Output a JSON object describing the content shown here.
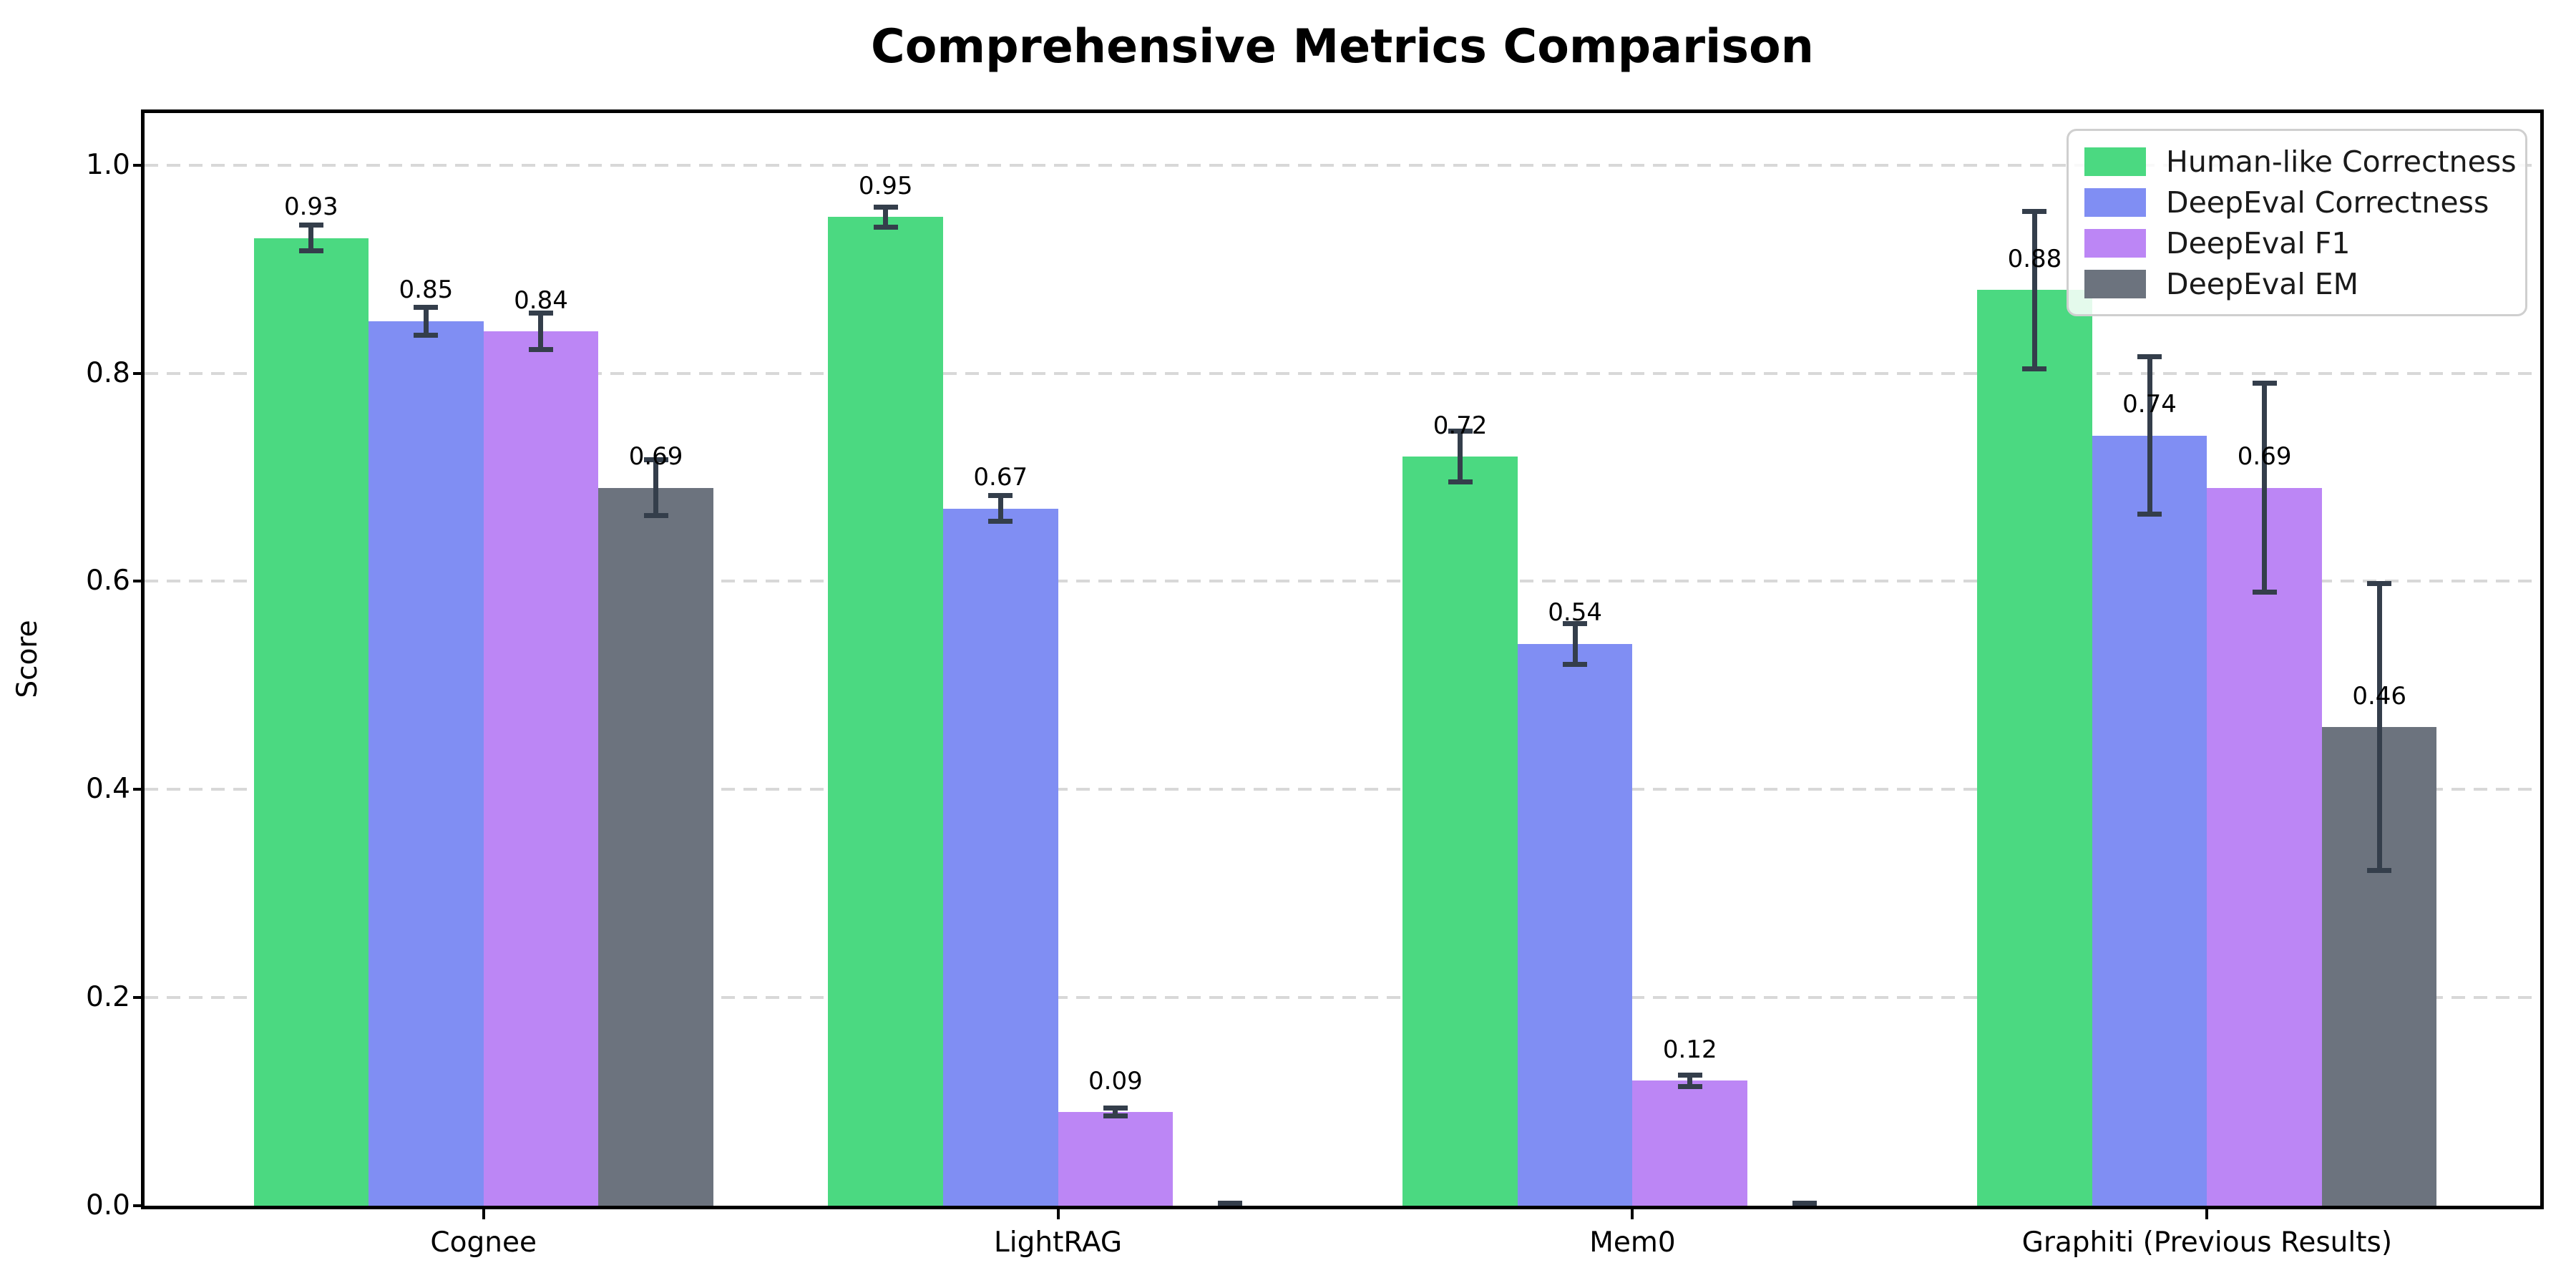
{
  "chart_data": {
    "type": "bar",
    "title": "Comprehensive Metrics Comparison",
    "ylabel": "Score",
    "xlabel": "",
    "categories": [
      "Cognee",
      "LightRAG",
      "Mem0",
      "Graphiti (Previous Results)"
    ],
    "ytick_labels": [
      "0.0",
      "0.2",
      "0.4",
      "0.6",
      "0.8",
      "1.0"
    ],
    "yticks": [
      0.0,
      0.2,
      0.4,
      0.6,
      0.8,
      1.0
    ],
    "ylim": [
      0,
      1.05
    ],
    "bar_width": 0.2,
    "grid": {
      "axis": "y",
      "style": "dashed",
      "color": "#d8d8d8"
    },
    "error_bar_color": "#343e4b",
    "legend": {
      "position": "upper right",
      "entries": [
        "Human-like Correctness",
        "DeepEval Correctness",
        "DeepEval F1",
        "DeepEval EM"
      ]
    },
    "series": [
      {
        "name": "Human-like Correctness",
        "color": "#4bd981",
        "values": [
          0.93,
          0.95,
          0.72,
          0.88
        ],
        "errors": [
          0.015,
          0.012,
          0.027,
          0.078
        ],
        "labels": [
          "0.93",
          "0.95",
          "0.72",
          "0.88"
        ]
      },
      {
        "name": "DeepEval Correctness",
        "color": "#808ef3",
        "values": [
          0.85,
          0.67,
          0.54,
          0.74
        ],
        "errors": [
          0.016,
          0.015,
          0.022,
          0.078
        ],
        "labels": [
          "0.85",
          "0.67",
          "0.54",
          "0.74"
        ]
      },
      {
        "name": "DeepEval F1",
        "color": "#bc86f5",
        "values": [
          0.84,
          0.09,
          0.12,
          0.69
        ],
        "errors": [
          0.02,
          0.006,
          0.008,
          0.103
        ],
        "labels": [
          "0.84",
          "0.09",
          "0.12",
          "0.69"
        ]
      },
      {
        "name": "DeepEval EM",
        "color": "#6c737e",
        "values": [
          0.69,
          0.0,
          0.0,
          0.46
        ],
        "errors": [
          0.029,
          0.005,
          0.005,
          0.14
        ],
        "labels": [
          "0.69",
          "",
          "",
          "0.46"
        ]
      }
    ]
  }
}
